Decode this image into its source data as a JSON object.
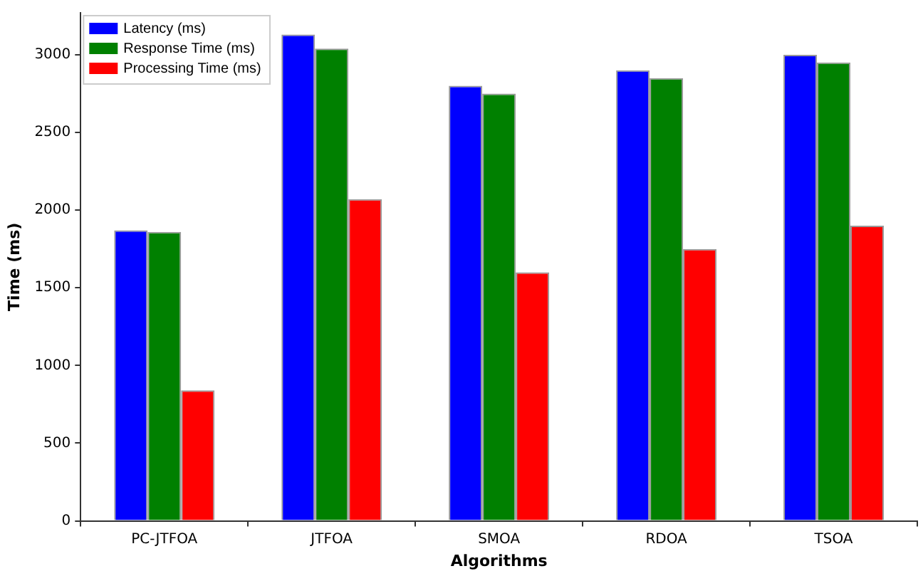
{
  "chart_data": {
    "type": "bar",
    "xlabel": "Algorithms",
    "ylabel": "Time (ms)",
    "categories": [
      "PC-JTFOA",
      "JTFOA",
      "SMOA",
      "RDOA",
      "TSOA"
    ],
    "series": [
      {
        "name": "Latency (ms)",
        "color": "#0000ff",
        "values": [
          1870,
          3130,
          2800,
          2900,
          3000
        ]
      },
      {
        "name": "Response Time (ms)",
        "color": "#008000",
        "values": [
          1860,
          3040,
          2750,
          2850,
          2950
        ]
      },
      {
        "name": "Processing Time (ms)",
        "color": "#ff0000",
        "values": [
          840,
          2070,
          1600,
          1750,
          1900
        ]
      }
    ],
    "ylim": [
      0,
      3270
    ],
    "yticks": [
      0,
      500,
      1000,
      1500,
      2000,
      2500,
      3000
    ],
    "grid": false,
    "legend": "top left"
  }
}
